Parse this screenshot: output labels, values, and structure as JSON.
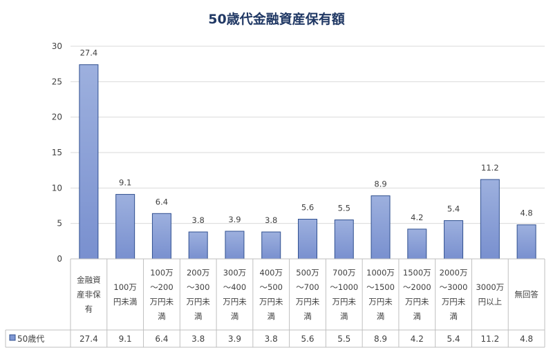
{
  "chart_data": {
    "type": "bar",
    "title": "50歳代金融資産保有額",
    "ylim": [
      0,
      30
    ],
    "yticks": [
      "0",
      "5",
      "10",
      "15",
      "20",
      "25",
      "30"
    ],
    "grid": true,
    "categories": [
      [
        "金融資",
        "産非保",
        "有"
      ],
      [
        "100万",
        "円未満"
      ],
      [
        "100万",
        "～200",
        "万円未",
        "満"
      ],
      [
        "200万",
        "～300",
        "万円未",
        "満"
      ],
      [
        "300万",
        "～400",
        "万円未",
        "満"
      ],
      [
        "400万",
        "～500",
        "万円未",
        "満"
      ],
      [
        "500万",
        "～700",
        "万円未",
        "満"
      ],
      [
        "700万",
        "～1000",
        "万円未",
        "満"
      ],
      [
        "1000万",
        "～1500",
        "万円未",
        "満"
      ],
      [
        "1500万",
        "～2000",
        "万円未",
        "満"
      ],
      [
        "2000万",
        "～3000",
        "万円未",
        "満"
      ],
      [
        "3000万",
        "円以上"
      ],
      [
        "無回答"
      ]
    ],
    "series": [
      {
        "name": "50歳代",
        "values": [
          27.4,
          9.1,
          6.4,
          3.8,
          3.9,
          3.8,
          5.6,
          5.5,
          8.9,
          4.2,
          5.4,
          11.2,
          4.8
        ],
        "labels": [
          "27.4",
          "9.1",
          "6.4",
          "3.8",
          "3.9",
          "3.8",
          "5.6",
          "5.5",
          "8.9",
          "4.2",
          "5.4",
          "11.2",
          "4.8"
        ]
      }
    ],
    "colors": {
      "bar_top": "#9db0de",
      "bar_bottom": "#7990cf",
      "bar_edge": "#2f4f8f",
      "legend_key": "#7f97d3"
    }
  }
}
